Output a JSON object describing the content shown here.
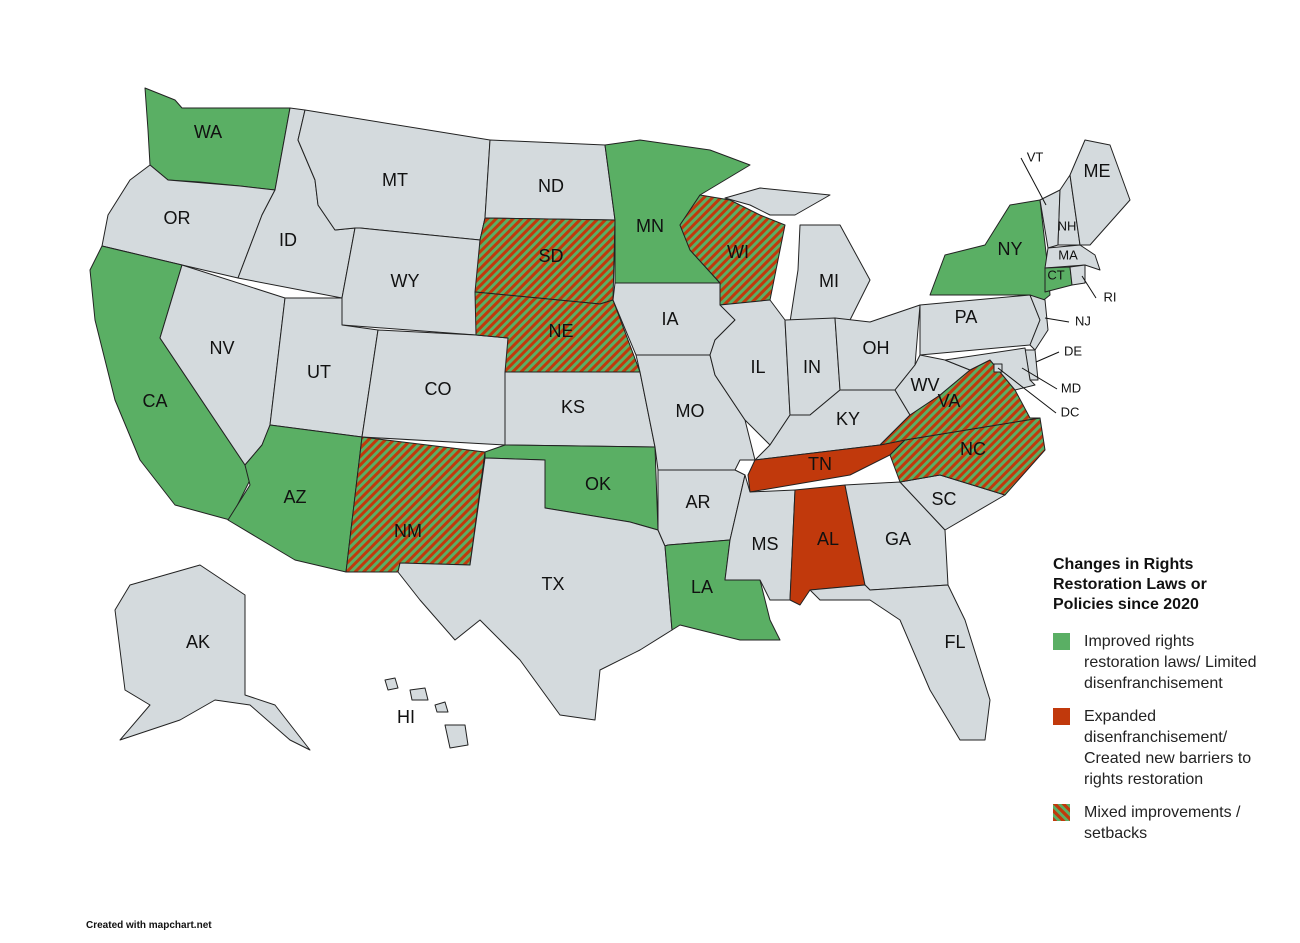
{
  "map": {
    "states": [
      {
        "label": "WA",
        "color": "#5aaf64"
      },
      {
        "label": "OR",
        "color": "#d4dadd"
      },
      {
        "label": "CA",
        "color": "#5aaf64"
      },
      {
        "label": "NV",
        "color": "#d4dadd"
      },
      {
        "label": "ID",
        "color": "#d4dadd"
      },
      {
        "label": "MT",
        "color": "#d4dadd"
      },
      {
        "label": "WY",
        "color": "#d4dadd"
      },
      {
        "label": "UT",
        "color": "#d4dadd"
      },
      {
        "label": "AZ",
        "color": "#5aaf64"
      },
      {
        "label": "CO",
        "color": "#d4dadd"
      },
      {
        "label": "NM",
        "color": [
          "#c1390c",
          "#5aaf64"
        ]
      },
      {
        "label": "ND",
        "color": "#d4dadd"
      },
      {
        "label": "SD",
        "color": [
          "#c1390c",
          "#5aaf64"
        ]
      },
      {
        "label": "NE",
        "color": [
          "#c1390c",
          "#5aaf64"
        ]
      },
      {
        "label": "KS",
        "color": "#d4dadd"
      },
      {
        "label": "OK",
        "color": "#5aaf64"
      },
      {
        "label": "TX",
        "color": "#d4dadd"
      },
      {
        "label": "MN",
        "color": "#5aaf64"
      },
      {
        "label": "IA",
        "color": "#d4dadd"
      },
      {
        "label": "MO",
        "color": "#d4dadd"
      },
      {
        "label": "AR",
        "color": "#d4dadd"
      },
      {
        "label": "LA",
        "color": "#5aaf64"
      },
      {
        "label": "WI",
        "color": [
          "#c1390c",
          "#5aaf64"
        ]
      },
      {
        "label": "IL",
        "color": "#d4dadd"
      },
      {
        "label": "MI",
        "color": "#d4dadd"
      },
      {
        "label": "IN",
        "color": "#d4dadd"
      },
      {
        "label": "OH",
        "color": "#d4dadd"
      },
      {
        "label": "KY",
        "color": "#d4dadd"
      },
      {
        "label": "TN",
        "color": "#c1390c"
      },
      {
        "label": "MS",
        "color": "#d4dadd"
      },
      {
        "label": "AL",
        "color": "#c1390c"
      },
      {
        "label": "GA",
        "color": "#d4dadd"
      },
      {
        "label": "FL",
        "color": "#d4dadd"
      },
      {
        "label": "SC",
        "color": "#d4dadd"
      },
      {
        "label": "NC",
        "color": [
          "#c1390c",
          "#5aaf64"
        ]
      },
      {
        "label": "VA",
        "color": [
          "#c1390c",
          "#5aaf64"
        ]
      },
      {
        "label": "WV",
        "color": "#d4dadd"
      },
      {
        "label": "PA",
        "color": "#d4dadd"
      },
      {
        "label": "NY",
        "color": "#5aaf64"
      },
      {
        "label": "NJ",
        "color": "#d4dadd"
      },
      {
        "label": "DE",
        "color": "#d4dadd"
      },
      {
        "label": "MD",
        "color": "#d4dadd"
      },
      {
        "label": "DC",
        "color": "#d4dadd"
      },
      {
        "label": "VT",
        "color": "#d4dadd"
      },
      {
        "label": "NH",
        "color": "#d4dadd"
      },
      {
        "label": "ME",
        "color": "#d4dadd"
      },
      {
        "label": "MA",
        "color": "#d4dadd"
      },
      {
        "label": "CT",
        "color": "#5aaf64"
      },
      {
        "label": "RI",
        "color": "#d4dadd"
      },
      {
        "label": "AK",
        "color": "#d4dadd"
      },
      {
        "label": "HI",
        "color": "#d4dadd"
      }
    ],
    "legend": {
      "title": "Changes in Rights Restoration Laws or Policies since 2020",
      "items": [
        {
          "label": "Improved rights restoration laws/ Limited disenfranchisement",
          "color": "#5aaf64"
        },
        {
          "label": "Expanded disenfranchisement/ Created new barriers to rights restoration",
          "color": "#c1390c"
        },
        {
          "label": "Mixed improvements / setbacks",
          "color": [
            "#c1390c",
            "#5aaf64"
          ]
        }
      ]
    },
    "credit": "Created with mapchart.net"
  }
}
